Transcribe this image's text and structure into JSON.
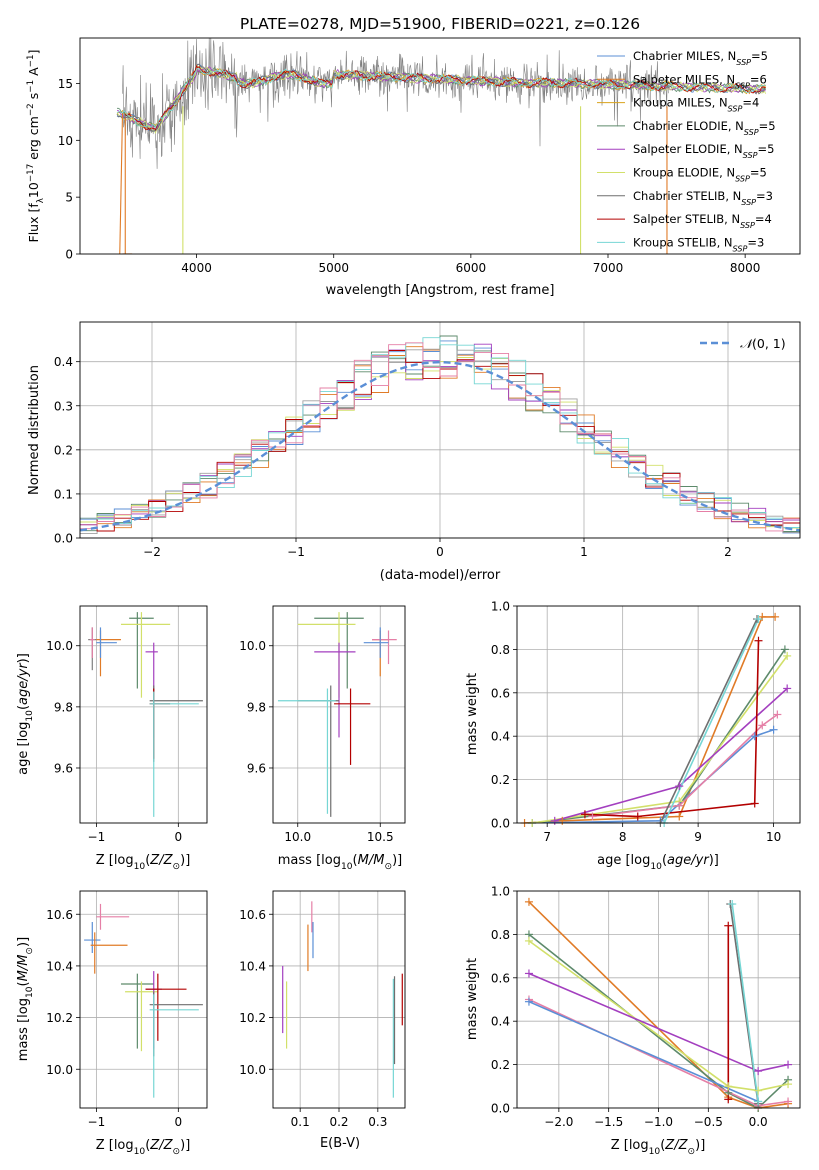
{
  "figure_title": "PLATE=0278, MJD=51900, FIBERID=0221, z=0.126",
  "colors": {
    "c0": "#5b8fd6",
    "c1": "#e07b27",
    "c2": "#5d8a6b",
    "c3": "#a33fbf",
    "c4": "#d2e06a",
    "c5": "#a0a0a0",
    "c6": "#b30000",
    "c7": "#76d6d4",
    "c8": "#e57fa6",
    "c9": "#7f7f7f"
  },
  "chart_data": [
    {
      "id": "spectrum",
      "type": "line",
      "title": "",
      "xlabel": "wavelength [Angstrom, rest frame]",
      "ylabel": "Flux [f_λ 10^-17 erg cm^-2 s^-1 A^-1]",
      "xlim": [
        3150,
        8400
      ],
      "ylim": [
        0,
        19
      ],
      "xticks": [
        4000,
        5000,
        6000,
        7000,
        8000
      ],
      "yticks": [
        0,
        5,
        10,
        15
      ],
      "legend_position": "right",
      "series": [
        {
          "name": "Chabrier MILES, N_SSP=5",
          "color": "#5b8fd6",
          "width": 0.8
        },
        {
          "name": "Salpeter MILES, N_SSP=6",
          "color": "#e07b27",
          "width": 0.8
        },
        {
          "name": "Kroupa MILES, N_SSP=4",
          "color": "#d9a21b",
          "width": 0.8
        },
        {
          "name": "Chabrier ELODIE, N_SSP=5",
          "color": "#5d8a6b",
          "width": 0.8
        },
        {
          "name": "Salpeter ELODIE, N_SSP=5",
          "color": "#a33fbf",
          "width": 0.8
        },
        {
          "name": "Kroupa ELODIE, N_SSP=5",
          "color": "#d2e06a",
          "width": 0.8
        },
        {
          "name": "Chabrier STELIB, N_SSP=3",
          "color": "#6f6f6f",
          "width": 0.8
        },
        {
          "name": "Salpeter STELIB, N_SSP=4",
          "color": "#b30000",
          "width": 0.8
        },
        {
          "name": "Kroupa STELIB, N_SSP=3",
          "color": "#76d6d4",
          "width": 0.8
        }
      ],
      "data_curve": {
        "color": "#7f7f7f",
        "x_range": [
          3460,
          7440
        ]
      },
      "model_dips": [
        3480,
        3900,
        6800,
        7430
      ]
    },
    {
      "id": "residuals",
      "type": "histogram",
      "xlabel": "(data-model)/error",
      "ylabel": "Normed distribution",
      "xlim": [
        -2.5,
        2.5
      ],
      "ylim": [
        0,
        0.49
      ],
      "xticks": [
        -2,
        -1,
        0,
        1,
        2
      ],
      "yticks": [
        0.0,
        0.1,
        0.2,
        0.3,
        0.4
      ],
      "grid": true,
      "legend_position": "top-right",
      "reference": {
        "name": "N(0,1)",
        "mean": 0,
        "sigma": 1,
        "color": "#5b8fd6"
      }
    },
    {
      "id": "age_vs_Z",
      "type": "scatter",
      "xlabel": "Z [log10(Z/Z⊙)]",
      "ylabel": "age [log10(age/yr)]",
      "xlim": [
        -1.2,
        0.35
      ],
      "ylim": [
        9.42,
        10.13
      ],
      "xticks": [
        -1,
        0
      ],
      "yticks": [
        9.6,
        9.8,
        10.0
      ],
      "grid": true
    },
    {
      "id": "age_vs_mass",
      "type": "scatter",
      "xlabel": "mass [log10(M/M⊙)]",
      "ylabel": "",
      "xlim": [
        9.85,
        10.65
      ],
      "ylim": [
        9.42,
        10.13
      ],
      "xticks": [
        10.0,
        10.5
      ],
      "yticks": [
        9.6,
        9.8,
        10.0
      ],
      "grid": true
    },
    {
      "id": "weight_vs_age",
      "type": "line",
      "xlabel": "age [log10(age/yr)]",
      "ylabel": "mass weight",
      "xlim": [
        6.6,
        10.35
      ],
      "ylim": [
        0,
        1
      ],
      "xticks": [
        7,
        8,
        9,
        10
      ],
      "yticks": [
        0.0,
        0.2,
        0.4,
        0.6,
        0.8,
        1.0
      ],
      "grid": true
    },
    {
      "id": "mass_vs_Z",
      "type": "scatter",
      "xlabel": "Z [log10(Z/Z⊙)]",
      "ylabel": "mass [log10(M/M⊙)]",
      "xlim": [
        -1.2,
        0.35
      ],
      "ylim": [
        9.85,
        10.69
      ],
      "xticks": [
        -1,
        0
      ],
      "yticks": [
        10.0,
        10.2,
        10.4,
        10.6
      ],
      "grid": true
    },
    {
      "id": "mass_vs_ebv",
      "type": "scatter",
      "xlabel": "E(B-V)",
      "ylabel": "",
      "xlim": [
        0.03,
        0.37
      ],
      "ylim": [
        9.85,
        10.69
      ],
      "xticks": [
        0.1,
        0.2,
        0.3
      ],
      "yticks": [
        10.0,
        10.2,
        10.4,
        10.6
      ],
      "grid": true
    },
    {
      "id": "weight_vs_Z",
      "type": "line",
      "xlabel": "Z [log10(Z/Z⊙)]",
      "ylabel": "mass weight",
      "xlim": [
        -2.42,
        0.42
      ],
      "ylim": [
        0,
        1
      ],
      "xticks": [
        -2.0,
        -1.5,
        -1.0,
        -0.5,
        0.0
      ],
      "yticks": [
        0.0,
        0.2,
        0.4,
        0.6,
        0.8,
        1.0
      ],
      "grid": true
    }
  ],
  "crosses_ageZ": [
    {
      "c": "#7f7f7f",
      "x": -1.05,
      "xl": 0.05,
      "xr": 0.05,
      "y": 10.02,
      "yd": 0.1,
      "yu": 0.04
    },
    {
      "c": "#e07b27",
      "x": -0.95,
      "xl": 0.05,
      "xr": 0.25,
      "y": 10.02,
      "yd": 0.12,
      "yu": 0.03
    },
    {
      "c": "#5b8fd6",
      "x": -0.95,
      "xl": 0.05,
      "xr": 0.2,
      "y": 10.01,
      "yd": 0.05,
      "yu": 0.05
    },
    {
      "c": "#5d8a6b",
      "x": -0.5,
      "xl": 0.1,
      "xr": 0.2,
      "y": 10.09,
      "yd": 0.23,
      "yu": 0.02
    },
    {
      "c": "#d2e06a",
      "x": -0.45,
      "xl": 0.25,
      "xr": 0.35,
      "y": 10.07,
      "yd": 0.24,
      "yu": 0.04
    },
    {
      "c": "#a33fbf",
      "x": -0.3,
      "xl": 0.1,
      "xr": 0.05,
      "y": 9.98,
      "yd": 0.28,
      "yu": 0.03
    },
    {
      "c": "#6f6f6f",
      "x": -0.3,
      "xl": 0.05,
      "xr": 0.6,
      "y": 9.82,
      "yd": 0.2,
      "yu": 0.05
    },
    {
      "c": "#b30000",
      "x": -0.3,
      "xl": 0.05,
      "xr": 0.2,
      "y": 9.81,
      "yd": 0.18,
      "yu": 0.05
    },
    {
      "c": "#76d6d4",
      "x": -0.3,
      "xl": 0.05,
      "xr": 0.55,
      "y": 9.81,
      "yd": 0.37,
      "yu": 0.04
    },
    {
      "c": "#e57fa6",
      "x": -1.05,
      "xl": 0.03,
      "xr": 0.03,
      "y": 10.02,
      "yd": 0.06,
      "yu": 0.04
    }
  ],
  "crosses_ageM": [
    {
      "c": "#5d8a6b",
      "x": 10.3,
      "xl": 0.2,
      "xr": 0.1,
      "y": 10.09,
      "yd": 0.23,
      "yu": 0.02
    },
    {
      "c": "#d2e06a",
      "x": 10.25,
      "xl": 0.25,
      "xr": 0.1,
      "y": 10.07,
      "yd": 0.24,
      "yu": 0.04
    },
    {
      "c": "#e07b27",
      "x": 10.5,
      "xl": 0.05,
      "xr": 0.05,
      "y": 10.02,
      "yd": 0.12,
      "yu": 0.03
    },
    {
      "c": "#e57fa6",
      "x": 10.55,
      "xl": 0.1,
      "xr": 0.05,
      "y": 10.02,
      "yd": 0.08,
      "yu": 0.03
    },
    {
      "c": "#5b8fd6",
      "x": 10.5,
      "xl": 0.1,
      "xr": 0.05,
      "y": 10.01,
      "yd": 0.05,
      "yu": 0.05
    },
    {
      "c": "#a33fbf",
      "x": 10.25,
      "xl": 0.15,
      "xr": 0.1,
      "y": 9.98,
      "yd": 0.28,
      "yu": 0.03
    },
    {
      "c": "#6f6f6f",
      "x": 10.2,
      "xl": 0.2,
      "xr": 0.05,
      "y": 9.82,
      "yd": 0.38,
      "yu": 0.05
    },
    {
      "c": "#76d6d4",
      "x": 10.18,
      "xl": 0.3,
      "xr": 0.05,
      "y": 9.82,
      "yd": 0.37,
      "yu": 0.04
    },
    {
      "c": "#b30000",
      "x": 10.32,
      "xl": 0.1,
      "xr": 0.12,
      "y": 9.81,
      "yd": 0.2,
      "yu": 0.05
    }
  ],
  "crosses_massZ": [
    {
      "c": "#e57fa6",
      "x": -0.95,
      "xl": 0.05,
      "xr": 0.35,
      "y": 10.59,
      "yd": 0.05,
      "yu": 0.05
    },
    {
      "c": "#5b8fd6",
      "x": -1.05,
      "xl": 0.1,
      "xr": 0.1,
      "y": 10.5,
      "yd": 0.05,
      "yu": 0.07
    },
    {
      "c": "#e07b27",
      "x": -1.02,
      "xl": 0.05,
      "xr": 0.4,
      "y": 10.48,
      "yd": 0.11,
      "yu": 0.05
    },
    {
      "c": "#5d8a6b",
      "x": -0.5,
      "xl": 0.2,
      "xr": 0.2,
      "y": 10.33,
      "yd": 0.25,
      "yu": 0.04
    },
    {
      "c": "#d2e06a",
      "x": -0.45,
      "xl": 0.2,
      "xr": 0.2,
      "y": 10.3,
      "yd": 0.23,
      "yu": 0.04
    },
    {
      "c": "#a33fbf",
      "x": -0.3,
      "xl": 0.1,
      "xr": 0.1,
      "y": 10.31,
      "yd": 0.23,
      "yu": 0.07
    },
    {
      "c": "#b30000",
      "x": -0.25,
      "xl": 0.15,
      "xr": 0.35,
      "y": 10.31,
      "yd": 0.2,
      "yu": 0.06
    },
    {
      "c": "#6f6f6f",
      "x": -0.3,
      "xl": 0.05,
      "xr": 0.6,
      "y": 10.25,
      "yd": 0.2,
      "yu": 0.05
    },
    {
      "c": "#76d6d4",
      "x": -0.3,
      "xl": 0.05,
      "xr": 0.55,
      "y": 10.23,
      "yd": 0.34,
      "yu": 0.06
    }
  ],
  "crosses_massE": [
    {
      "c": "#a33fbf",
      "x": 0.055,
      "xl": 0,
      "xr": 0,
      "y": 10.3,
      "yd": 0.16,
      "yu": 0.1
    },
    {
      "c": "#d2e06a",
      "x": 0.065,
      "xl": 0,
      "xr": 0,
      "y": 10.24,
      "yd": 0.16,
      "yu": 0.1
    },
    {
      "c": "#e07b27",
      "x": 0.12,
      "xl": 0,
      "xr": 0,
      "y": 10.48,
      "yd": 0.1,
      "yu": 0.08
    },
    {
      "c": "#e57fa6",
      "x": 0.13,
      "xl": 0,
      "xr": 0,
      "y": 10.59,
      "yd": 0.06,
      "yu": 0.06
    },
    {
      "c": "#5b8fd6",
      "x": 0.133,
      "xl": 0,
      "xr": 0,
      "y": 10.5,
      "yd": 0.07,
      "yu": 0.07
    },
    {
      "c": "#76d6d4",
      "x": 0.34,
      "xl": 0,
      "xr": 0,
      "y": 10.13,
      "yd": 0.24,
      "yu": 0.22
    },
    {
      "c": "#6f6f6f",
      "x": 0.343,
      "xl": 0,
      "xr": 0,
      "y": 10.24,
      "yd": 0.22,
      "yu": 0.12
    },
    {
      "c": "#b30000",
      "x": 0.363,
      "xl": 0,
      "xr": 0,
      "y": 10.27,
      "yd": 0.1,
      "yu": 0.1
    }
  ],
  "weights_age": [
    {
      "c": "#e07b27",
      "pts": [
        [
          6.7,
          0
        ],
        [
          7.2,
          0.01
        ],
        [
          8.75,
          0.03
        ],
        [
          9.85,
          0.95
        ],
        [
          10.02,
          0.95
        ]
      ]
    },
    {
      "c": "#5b8fd6",
      "pts": [
        [
          6.8,
          0
        ],
        [
          8.5,
          0.01
        ],
        [
          9.75,
          0.4
        ],
        [
          10.0,
          0.43
        ]
      ]
    },
    {
      "c": "#5d8a6b",
      "pts": [
        [
          6.8,
          0
        ],
        [
          8.75,
          0.08
        ],
        [
          10.15,
          0.8
        ]
      ]
    },
    {
      "c": "#d2e06a",
      "pts": [
        [
          6.8,
          0
        ],
        [
          8.75,
          0.1
        ],
        [
          10.18,
          0.77
        ]
      ]
    },
    {
      "c": "#a33fbf",
      "pts": [
        [
          7.1,
          0.01
        ],
        [
          8.75,
          0.17
        ],
        [
          10.18,
          0.62
        ]
      ]
    },
    {
      "c": "#e57fa6",
      "pts": [
        [
          7.6,
          0.03
        ],
        [
          8.75,
          0.08
        ],
        [
          9.85,
          0.45
        ],
        [
          10.05,
          0.5
        ]
      ]
    },
    {
      "c": "#b30000",
      "pts": [
        [
          7.5,
          0.04
        ],
        [
          8.2,
          0.03
        ],
        [
          9.75,
          0.09
        ],
        [
          9.8,
          0.84
        ]
      ]
    },
    {
      "c": "#6f6f6f",
      "pts": [
        [
          8.5,
          0.0
        ],
        [
          9.78,
          0.94
        ]
      ]
    },
    {
      "c": "#76d6d4",
      "pts": [
        [
          8.55,
          0.0
        ],
        [
          9.8,
          0.94
        ]
      ]
    }
  ],
  "weights_Z": [
    {
      "c": "#e07b27",
      "pts": [
        [
          -2.3,
          0.95
        ],
        [
          -0.3,
          0.05
        ],
        [
          0.0,
          0.0
        ],
        [
          0.3,
          0.02
        ]
      ]
    },
    {
      "c": "#5d8a6b",
      "pts": [
        [
          -2.3,
          0.8
        ],
        [
          -0.3,
          0.07
        ],
        [
          0.0,
          0.0
        ],
        [
          0.3,
          0.13
        ]
      ]
    },
    {
      "c": "#d2e06a",
      "pts": [
        [
          -2.3,
          0.77
        ],
        [
          -0.3,
          0.1
        ],
        [
          0.0,
          0.08
        ],
        [
          0.3,
          0.11
        ]
      ]
    },
    {
      "c": "#a33fbf",
      "pts": [
        [
          -2.3,
          0.62
        ],
        [
          0.0,
          0.17
        ],
        [
          0.3,
          0.2
        ]
      ]
    },
    {
      "c": "#e57fa6",
      "pts": [
        [
          -2.3,
          0.5
        ],
        [
          0.0,
          0.01
        ],
        [
          0.3,
          0.03
        ]
      ]
    },
    {
      "c": "#5b8fd6",
      "pts": [
        [
          -2.3,
          0.49
        ],
        [
          0.0,
          0.03
        ]
      ]
    },
    {
      "c": "#b30000",
      "pts": [
        [
          -0.3,
          0.84
        ],
        [
          -0.3,
          0.04
        ]
      ]
    },
    {
      "c": "#6f6f6f",
      "pts": [
        [
          -0.28,
          0.94
        ],
        [
          0.0,
          0.02
        ]
      ]
    },
    {
      "c": "#76d6d4",
      "pts": [
        [
          -0.26,
          0.94
        ],
        [
          0.0,
          0.03
        ]
      ]
    }
  ]
}
